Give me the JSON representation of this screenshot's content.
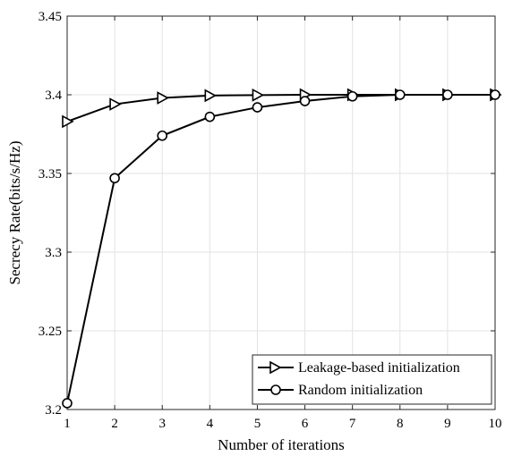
{
  "chart_data": {
    "type": "line",
    "title": "",
    "xlabel": "Number of iterations",
    "ylabel": "Secrecy Rate(bits/s/Hz)",
    "x": [
      1,
      2,
      3,
      4,
      5,
      6,
      7,
      8,
      9,
      10
    ],
    "xlim": [
      1,
      10
    ],
    "ylim": [
      3.2,
      3.45
    ],
    "xticks": [
      1,
      2,
      3,
      4,
      5,
      6,
      7,
      8,
      9,
      10
    ],
    "yticks": [
      3.2,
      3.25,
      3.3,
      3.35,
      3.4,
      3.45
    ],
    "ytick_labels": [
      "3.2",
      "3.25",
      "3.3",
      "3.35",
      "3.4",
      "3.45"
    ],
    "grid": true,
    "legend_position": "bottom-right",
    "series": [
      {
        "name": "Leakage-based initialization",
        "marker": "triangle-right",
        "color": "#000000",
        "values": [
          3.383,
          3.394,
          3.398,
          3.3995,
          3.3998,
          3.4,
          3.4,
          3.4,
          3.4,
          3.4
        ]
      },
      {
        "name": "Random initialization",
        "marker": "circle",
        "color": "#000000",
        "values": [
          3.204,
          3.347,
          3.374,
          3.386,
          3.392,
          3.396,
          3.399,
          3.4,
          3.4,
          3.4
        ]
      }
    ]
  }
}
